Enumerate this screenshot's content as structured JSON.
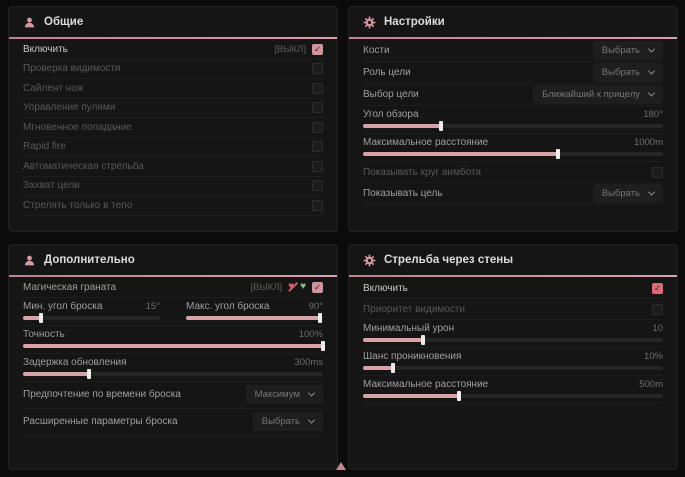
{
  "theme": {
    "accent": "#d596a0",
    "slider_fill": "#d8a2a8",
    "checkbox_on": "#d0939c",
    "walls_checkbox_on": "#dd6b75",
    "panel_bg": "#151515",
    "page_bg": "#0b0b0b",
    "heart_off_color": "#d2606e",
    "heart_on_color": "#7fc47f"
  },
  "icons": {
    "general_header": "user-icon",
    "settings_header": "gear-icon",
    "additional_header": "user-icon",
    "walls_header": "gear-icon",
    "pointer": "pink-triangle-cursor"
  },
  "panels": {
    "general": {
      "title": "Общие",
      "rows": [
        {
          "name": "enable",
          "type": "toggle",
          "label": "Включить",
          "state_text": "[ВЫКЛ]",
          "checked": true,
          "bright": true
        },
        {
          "name": "visibility-check",
          "type": "toggle",
          "label": "Проверка видимости",
          "checked": false,
          "dim": true
        },
        {
          "name": "silent-knife",
          "type": "toggle",
          "label": "Сайлент нож",
          "checked": false,
          "dim": true
        },
        {
          "name": "bullet-control",
          "type": "toggle",
          "label": "Управление пулями",
          "checked": false,
          "dim": true
        },
        {
          "name": "instant-hit",
          "type": "toggle",
          "label": "Мгновенное попадание",
          "checked": false,
          "dim": true
        },
        {
          "name": "rapid-fire",
          "type": "toggle",
          "label": "Rapid fire",
          "checked": false,
          "dim": true
        },
        {
          "name": "auto-fire",
          "type": "toggle",
          "label": "Автоматическая стрельба",
          "checked": false,
          "dim": true
        },
        {
          "name": "target-lock",
          "type": "toggle",
          "label": "Захват цели",
          "checked": false,
          "dim": true
        },
        {
          "name": "body-only",
          "type": "toggle",
          "label": "Стрелять только в тело",
          "checked": false,
          "dim": true
        }
      ]
    },
    "settings": {
      "title": "Настройки",
      "rows": [
        {
          "name": "bones",
          "type": "drop",
          "label": "Кости",
          "value": "Выбрать"
        },
        {
          "name": "target-role",
          "type": "drop",
          "label": "Роль цели",
          "value": "Выбрать"
        },
        {
          "name": "target-select",
          "type": "drop",
          "label": "Выбор цели",
          "value": "Ближайший к прицелу"
        },
        {
          "name": "fov",
          "type": "slider",
          "label": "Угол обзора",
          "value": "180°",
          "pct": 26
        },
        {
          "name": "max-distance",
          "type": "slider",
          "label": "Максимальное расстояние",
          "value": "1000m",
          "pct": 65
        },
        {
          "name": "show-aimbot-circle",
          "type": "toggle",
          "label": "Показывать круг аимбота",
          "checked": false,
          "dim": true
        },
        {
          "name": "show-target",
          "type": "drop",
          "label": "Показывать цель",
          "value": "Выбрать"
        }
      ]
    },
    "additional": {
      "title": "Дополнительно",
      "rows": [
        {
          "name": "magic-grenade",
          "type": "toggle",
          "label": "Магическая граната",
          "state_text": "[ВЫКЛ]",
          "checked": true,
          "icons": [
            {
              "name": "heart-off-icon",
              "glyph": "♥",
              "color": "#d2606e",
              "slash": true
            },
            {
              "name": "heart-on-icon",
              "glyph": "♥",
              "color": "#7fc47f",
              "slash": false
            }
          ]
        },
        {
          "name": "throw-angles",
          "type": "sliderpair",
          "items": [
            {
              "name": "min-throw-angle",
              "label": "Мин. угол броска",
              "value": "15°",
              "pct": 13
            },
            {
              "name": "max-throw-angle",
              "label": "Макс. угол броска",
              "value": "90°",
              "pct": 98
            }
          ]
        },
        {
          "name": "accuracy",
          "type": "slider",
          "label": "Точность",
          "value": "100%",
          "pct": 100
        },
        {
          "name": "update-delay",
          "type": "slider",
          "label": "Задержка обновления",
          "value": "300ms",
          "pct": 22
        },
        {
          "name": "throw-time-preference",
          "type": "drop",
          "label": "Предпочтение по времени броска",
          "value": "Максимум"
        },
        {
          "name": "advanced-throw-params",
          "type": "drop",
          "label": "Расширенные параметры броска",
          "value": "Выбрать"
        }
      ]
    },
    "walls": {
      "title": "Стрельба через стены",
      "rows": [
        {
          "name": "enable",
          "type": "toggle",
          "label": "Включить",
          "checked": true,
          "bright": true,
          "cb_color": "#dd6b75"
        },
        {
          "name": "visibility-priority",
          "type": "toggle",
          "label": "Приоритет видимости",
          "checked": false,
          "dim": true
        },
        {
          "name": "min-damage",
          "type": "slider",
          "label": "Минимальный урон",
          "value": "10",
          "pct": 20
        },
        {
          "name": "penetration-chance",
          "type": "slider",
          "label": "Шанс проникновения",
          "value": "10%",
          "pct": 10
        },
        {
          "name": "max-distance",
          "type": "slider",
          "label": "Максимальное расстояние",
          "value": "500m",
          "pct": 32
        }
      ]
    }
  }
}
